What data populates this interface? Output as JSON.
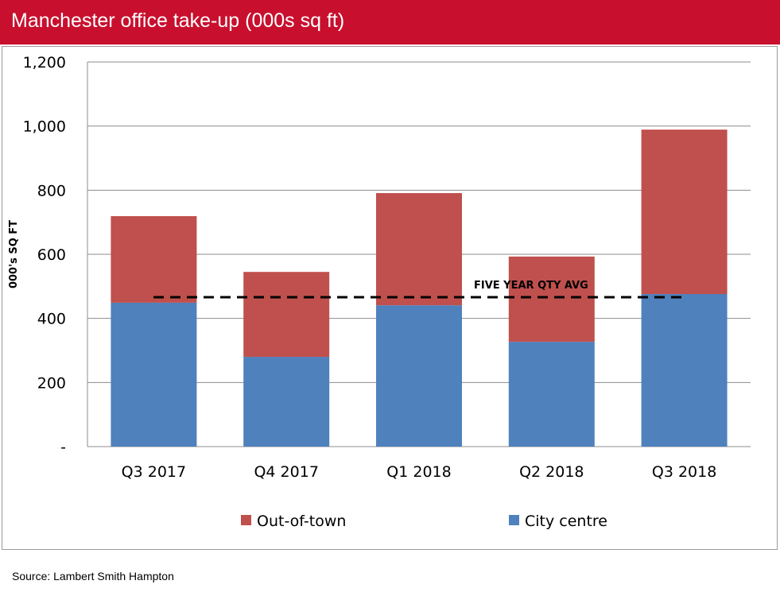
{
  "title": "Manchester office take-up (000s sq ft)",
  "source": "Source: Lambert Smith Hampton",
  "chart_data": {
    "type": "bar",
    "stacked": true,
    "title": "Manchester office take-up (000s sq ft)",
    "xlabel": "",
    "ylabel": "000's SQ FT",
    "ylim": [
      0,
      1200
    ],
    "yticks": [
      0,
      200,
      400,
      600,
      800,
      1000,
      1200
    ],
    "ytick_labels": [
      "-",
      "200",
      "400",
      "600",
      "800",
      "1,000",
      "1,200"
    ],
    "grid": true,
    "legend": "bottom",
    "categories": [
      "Q3 2017",
      "Q4 2017",
      "Q1 2018",
      "Q2 2018",
      "Q3 2018"
    ],
    "series": [
      {
        "name": "City centre",
        "color": "#4F81BD",
        "values": [
          449,
          280,
          441,
          327,
          476
        ]
      },
      {
        "name": "Out-of-town",
        "color": "#C0504D",
        "values": [
          270,
          265,
          350,
          266,
          513
        ]
      }
    ],
    "reference_line": {
      "label": "FIVE YEAR QTY AVG",
      "value": 466,
      "style": "dashed",
      "color": "#000000"
    },
    "legend_order": [
      "Out-of-town",
      "City centre"
    ]
  }
}
